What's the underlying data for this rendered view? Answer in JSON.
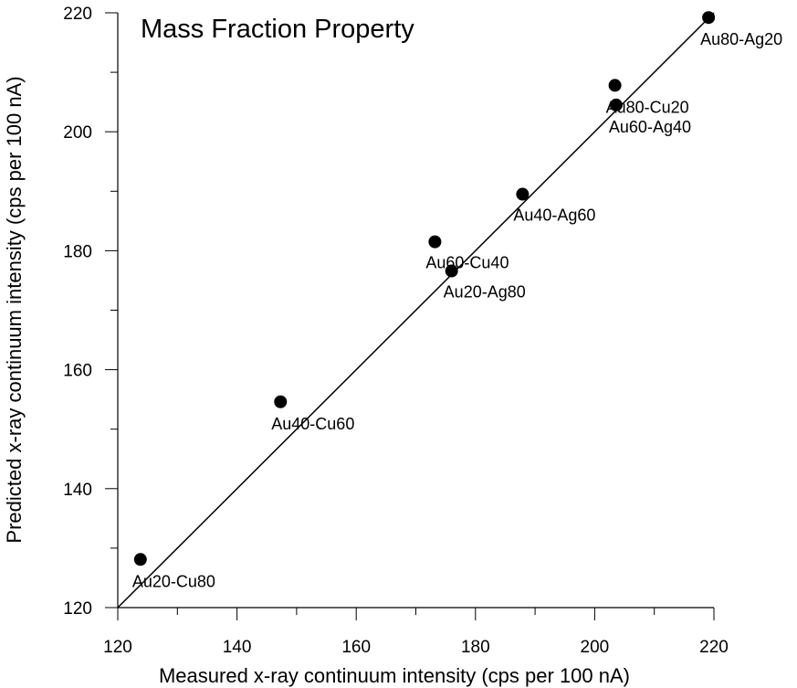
{
  "chart_data": {
    "type": "scatter",
    "title": "Mass Fraction Property",
    "xlabel": "Measured x-ray continuum intensity (cps per 100 nA)",
    "ylabel": "Predicted x-ray continuum intensity (cps per 100 nA)",
    "xlim": [
      120,
      220
    ],
    "ylim": [
      120,
      220
    ],
    "x_ticks": [
      120,
      140,
      160,
      180,
      200,
      220
    ],
    "y_ticks": [
      120,
      140,
      160,
      180,
      200,
      220
    ],
    "x_minor_step": 10,
    "y_minor_step": 10,
    "grid": false,
    "reference_line": {
      "from": [
        120,
        120
      ],
      "to": [
        220,
        220
      ]
    },
    "points": [
      {
        "label": "Au20-Cu80",
        "x": 123.8,
        "y": 128.1
      },
      {
        "label": "Au40-Cu60",
        "x": 147.3,
        "y": 154.6
      },
      {
        "label": "Au60-Cu40",
        "x": 173.2,
        "y": 181.5
      },
      {
        "label": "Au20-Ag80",
        "x": 176.0,
        "y": 176.6
      },
      {
        "label": "Au40-Ag60",
        "x": 187.9,
        "y": 189.5
      },
      {
        "label": "Au80-Cu20",
        "x": 203.4,
        "y": 207.8
      },
      {
        "label": "Au60-Ag40",
        "x": 203.6,
        "y": 204.5
      },
      {
        "label": "Au80-Ag20",
        "x": 219.1,
        "y": 219.2
      }
    ],
    "color": "#000000"
  }
}
